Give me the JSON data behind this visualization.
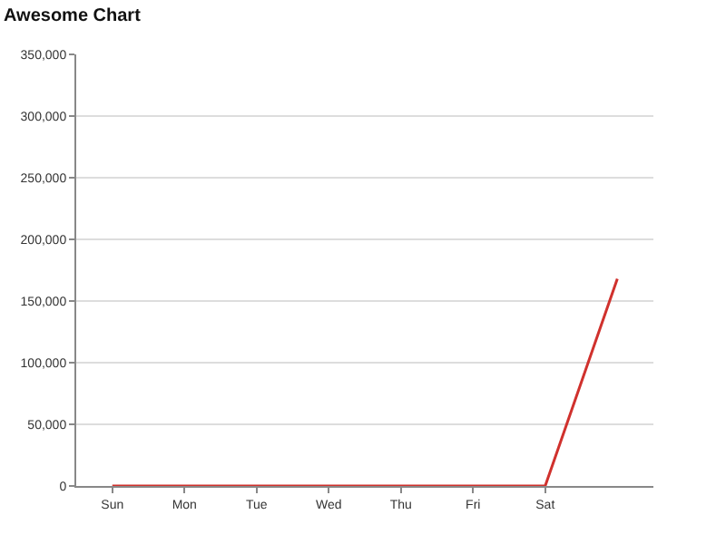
{
  "chart_data": {
    "type": "line",
    "title": "Awesome Chart",
    "categories": [
      "Sun",
      "Mon",
      "Tue",
      "Wed",
      "Thu",
      "Fri",
      "Sat",
      null
    ],
    "series": [
      {
        "color": "#d0312d",
        "values": [
          0,
          0,
          0,
          0,
          0,
          0,
          0,
          168000
        ]
      }
    ],
    "ylim": [
      0,
      350000
    ],
    "yticks": [
      {
        "value": 0,
        "label": "0"
      },
      {
        "value": 50000,
        "label": "50,000"
      },
      {
        "value": 100000,
        "label": "100,000"
      },
      {
        "value": 150000,
        "label": "150,000"
      },
      {
        "value": 200000,
        "label": "200,000"
      },
      {
        "value": 250000,
        "label": "250,000"
      },
      {
        "value": 300000,
        "label": "300,000"
      },
      {
        "value": 350000,
        "label": "350,000"
      }
    ],
    "grid": "y",
    "marker": "none",
    "line_style": "solid"
  }
}
